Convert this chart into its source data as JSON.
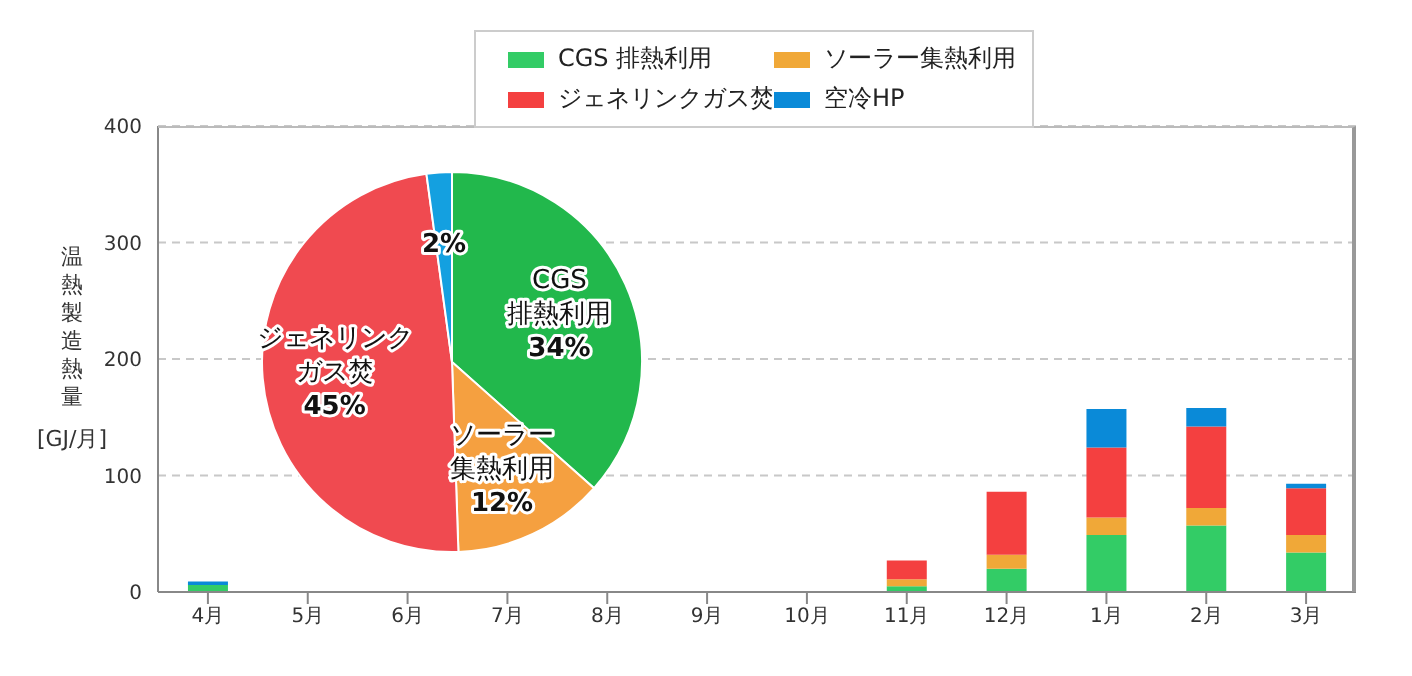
{
  "chart_data": [
    {
      "type": "bar",
      "stacked": true,
      "ylabel": "温熱製造熱量\n[GJ/月]",
      "categories": [
        "4月",
        "5月",
        "6月",
        "7月",
        "8月",
        "9月",
        "10月",
        "11月",
        "12月",
        "1月",
        "2月",
        "3月"
      ],
      "series": [
        {
          "name": "CGS 排熱利用",
          "color": "#33cc66",
          "values": [
            6,
            0,
            0,
            0,
            0,
            0,
            0,
            5,
            20,
            49,
            57,
            34
          ]
        },
        {
          "name": "ソーラー集熱利用",
          "color": "#f0a838",
          "values": [
            0,
            0,
            0,
            0,
            0,
            0,
            0,
            6,
            12,
            15,
            15,
            15
          ]
        },
        {
          "name": "ジェネリンクガス焚",
          "color": "#f44040",
          "values": [
            0,
            0,
            0,
            0,
            0,
            0,
            0,
            16,
            54,
            60,
            70,
            40
          ]
        },
        {
          "name": "空冷HP",
          "color": "#0a8ad8",
          "values": [
            3,
            0,
            0,
            0,
            0,
            0,
            0,
            0,
            0,
            33,
            16,
            4
          ]
        }
      ],
      "ylim": [
        0,
        400
      ],
      "yticks": [
        0,
        100,
        200,
        300,
        400
      ],
      "grid": "y",
      "legend": "top"
    },
    {
      "type": "pie",
      "categories": [
        "CGS 排熱利用",
        "ソーラー集熱利用",
        "ジェネリンクガス焚",
        null
      ],
      "values": [
        34,
        12,
        45,
        2
      ],
      "value_labels": [
        "34%",
        "12%",
        "45%",
        "2%"
      ],
      "colors": [
        "#22b84c",
        "#f5a040",
        "#f04a50",
        "#14a0e0"
      ]
    }
  ]
}
